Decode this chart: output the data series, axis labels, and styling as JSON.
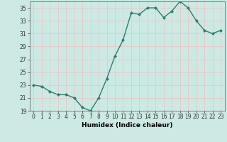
{
  "x": [
    0,
    1,
    2,
    3,
    4,
    5,
    6,
    7,
    8,
    9,
    10,
    11,
    12,
    13,
    14,
    15,
    16,
    17,
    18,
    19,
    20,
    21,
    22,
    23
  ],
  "y": [
    23.0,
    22.8,
    22.0,
    21.5,
    21.5,
    21.0,
    19.5,
    19.0,
    21.0,
    24.0,
    27.5,
    30.0,
    34.2,
    34.0,
    35.0,
    35.0,
    33.5,
    34.5,
    36.0,
    35.0,
    33.0,
    31.5,
    31.0,
    31.5
  ],
  "xlabel": "Humidex (Indice chaleur)",
  "ylim": [
    19,
    36
  ],
  "xlim": [
    -0.5,
    23.5
  ],
  "yticks": [
    19,
    21,
    23,
    25,
    27,
    29,
    31,
    33,
    35
  ],
  "xticks": [
    0,
    1,
    2,
    3,
    4,
    5,
    6,
    7,
    8,
    9,
    10,
    11,
    12,
    13,
    14,
    15,
    16,
    17,
    18,
    19,
    20,
    21,
    22,
    23
  ],
  "line_color": "#2d7d6e",
  "marker_color": "#2d7d6e",
  "bg_color": "#cce9e4",
  "grid_color": "#f0f0f0",
  "xlabel_fontsize": 6.5,
  "tick_fontsize": 5.5
}
